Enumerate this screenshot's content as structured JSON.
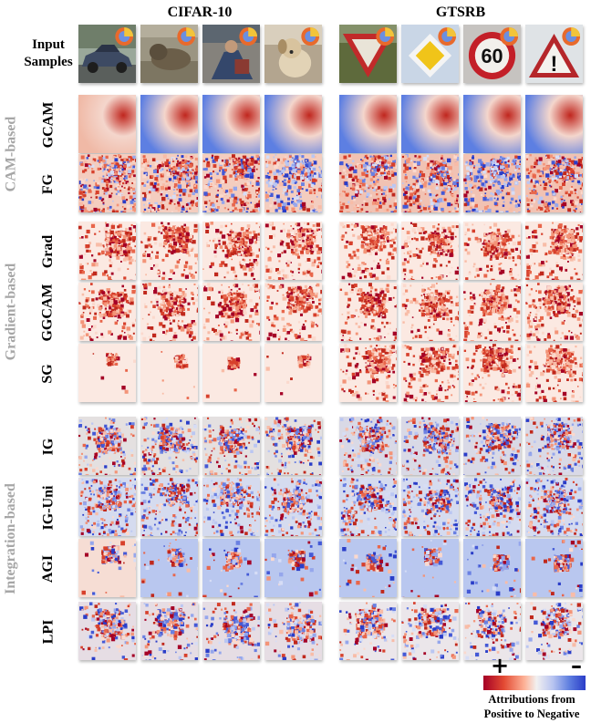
{
  "datasets": [
    "CIFAR-10",
    "GTSRB"
  ],
  "input_row": {
    "label_line1": "Input",
    "label_line2": "Samples"
  },
  "methods": [
    "GCAM",
    "FG",
    "Grad",
    "GGCAM",
    "SG",
    "IG",
    "IG-Uni",
    "AGI",
    "LPI"
  ],
  "groups": [
    {
      "name": "CAM-based",
      "methods": [
        "GCAM",
        "FG"
      ]
    },
    {
      "name": "Gradient-based",
      "methods": [
        "Grad",
        "GGCAM",
        "SG"
      ]
    },
    {
      "name": "Integration-based",
      "methods": [
        "IG",
        "IG-Uni",
        "AGI",
        "LPI"
      ]
    }
  ],
  "input_samples": {
    "CIFAR-10": [
      "car",
      "animal",
      "person",
      "dog"
    ],
    "GTSRB": [
      "yield-sign",
      "priority-road-sign",
      "speed-limit-60-sign",
      "warning-sign"
    ]
  },
  "sign_texts": {
    "speed_limit": "60",
    "warning": "!"
  },
  "colorbar": {
    "plus_label": "+",
    "minus_label": "–",
    "caption_line1": "Attributions from",
    "caption_line2": "Positive to Negative",
    "colors": [
      "#a50026",
      "#e34a33",
      "#fdb196",
      "#f2f0f0",
      "#b8c4f0",
      "#5f7fe0",
      "#2a3dc8"
    ]
  }
}
